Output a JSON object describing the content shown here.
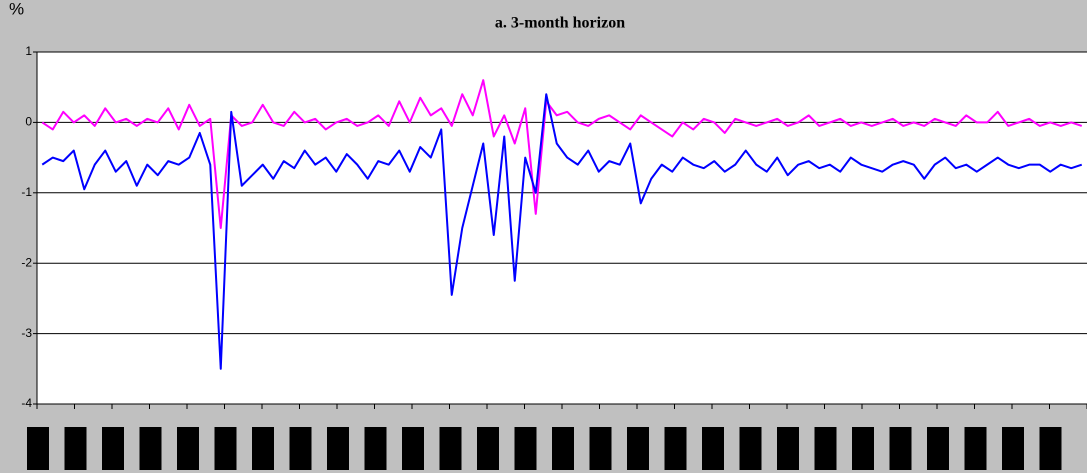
{
  "chart_data": {
    "type": "line",
    "subtitle": "a. 3-month horizon",
    "y_label": "%",
    "ylim": [
      -4,
      1
    ],
    "yticks": [
      -4,
      -3,
      -2,
      -1,
      0,
      1
    ],
    "grid": true,
    "series": [
      {
        "color": "#ff00ff",
        "values": [
          0,
          -0.1,
          0.15,
          0,
          0.1,
          -0.05,
          0.2,
          0,
          0.05,
          -0.05,
          0.05,
          0,
          0.2,
          -0.1,
          0.25,
          -0.05,
          0.05,
          -1.5,
          0.1,
          -0.05,
          0,
          0.25,
          0,
          -0.05,
          0.15,
          0,
          0.05,
          -0.1,
          0,
          0.05,
          -0.05,
          0,
          0.1,
          -0.05,
          0.3,
          0,
          0.35,
          0.1,
          0.2,
          -0.05,
          0.4,
          0.1,
          0.6,
          -0.2,
          0.1,
          -0.3,
          0.2,
          -1.3,
          0.3,
          0.1,
          0.15,
          0,
          -0.05,
          0.05,
          0.1,
          0,
          -0.1,
          0.1,
          0,
          -0.1,
          -0.2,
          0,
          -0.1,
          0.05,
          0,
          -0.15,
          0.05,
          0,
          -0.05,
          0,
          0.05,
          -0.05,
          0,
          0.1,
          -0.05,
          0,
          0.05,
          -0.05,
          0,
          -0.05,
          0,
          0.05,
          -0.05,
          0,
          -0.05,
          0.05,
          0,
          -0.05,
          0.1,
          0,
          0,
          0.15,
          -0.05,
          0,
          0.05,
          -0.05,
          0,
          -0.05,
          0,
          -0.05
        ]
      },
      {
        "color": "#0000ff",
        "values": [
          -0.6,
          -0.5,
          -0.55,
          -0.4,
          -0.95,
          -0.6,
          -0.4,
          -0.7,
          -0.55,
          -0.9,
          -0.6,
          -0.75,
          -0.55,
          -0.6,
          -0.5,
          -0.15,
          -0.6,
          -3.5,
          0.15,
          -0.9,
          -0.75,
          -0.6,
          -0.8,
          -0.55,
          -0.65,
          -0.4,
          -0.6,
          -0.5,
          -0.7,
          -0.45,
          -0.6,
          -0.8,
          -0.55,
          -0.6,
          -0.4,
          -0.7,
          -0.35,
          -0.5,
          -0.1,
          -2.45,
          -1.5,
          -0.9,
          -0.3,
          -1.6,
          -0.2,
          -2.25,
          -0.5,
          -1.0,
          0.4,
          -0.3,
          -0.5,
          -0.6,
          -0.4,
          -0.7,
          -0.55,
          -0.6,
          -0.3,
          -1.15,
          -0.8,
          -0.6,
          -0.7,
          -0.5,
          -0.6,
          -0.65,
          -0.55,
          -0.7,
          -0.6,
          -0.4,
          -0.6,
          -0.7,
          -0.5,
          -0.75,
          -0.6,
          -0.55,
          -0.65,
          -0.6,
          -0.7,
          -0.5,
          -0.6,
          -0.65,
          -0.7,
          -0.6,
          -0.55,
          -0.6,
          -0.8,
          -0.6,
          -0.5,
          -0.65,
          -0.6,
          -0.7,
          -0.6,
          -0.5,
          -0.6,
          -0.65,
          -0.6,
          -0.6,
          -0.7,
          -0.6,
          -0.65,
          -0.6
        ]
      }
    ]
  }
}
